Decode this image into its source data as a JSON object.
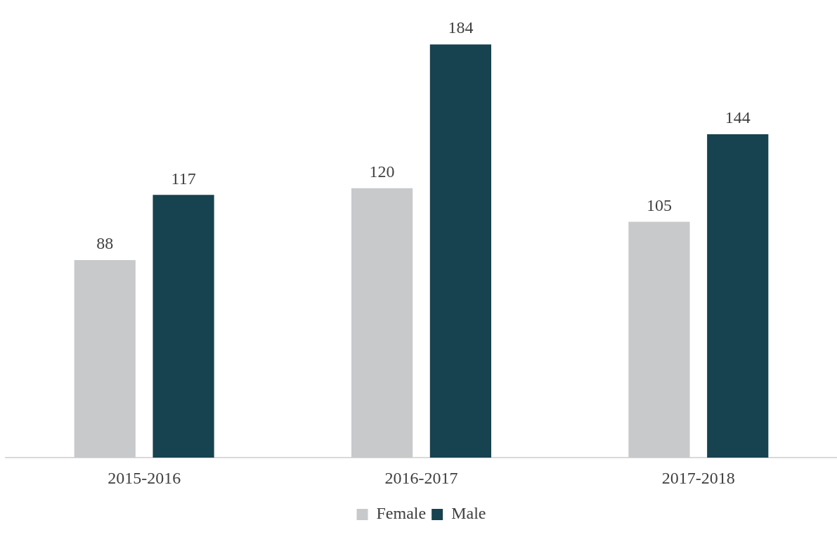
{
  "chart_data": {
    "type": "bar",
    "categories": [
      "2015-2016",
      "2016-2017",
      "2017-2018"
    ],
    "series": [
      {
        "name": "Female",
        "color": "#c8c9cb",
        "values": [
          88,
          120,
          105
        ]
      },
      {
        "name": "Male",
        "color": "#17424f",
        "values": [
          117,
          184,
          144
        ]
      }
    ],
    "tick_labels": "x",
    "grid": false,
    "legend": "bottom",
    "data_labels": true
  }
}
